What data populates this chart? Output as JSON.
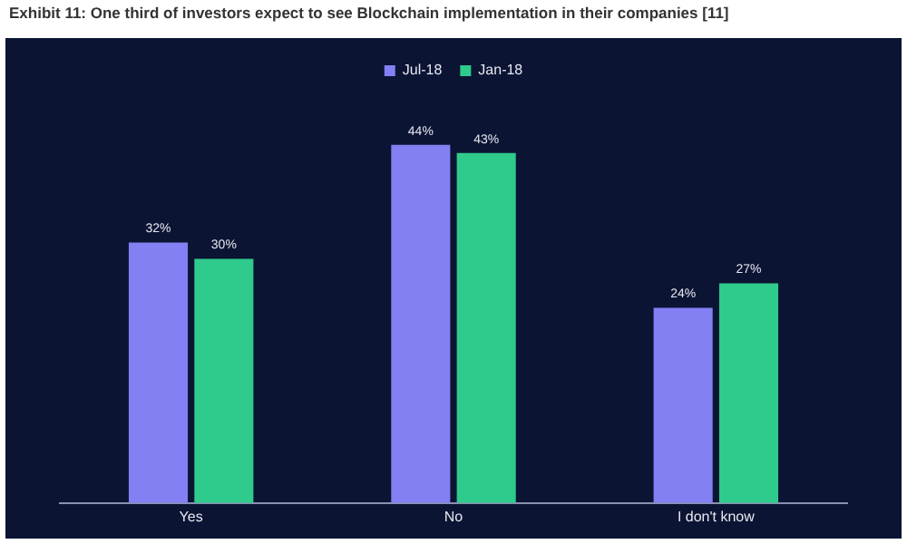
{
  "chart_data": {
    "type": "bar",
    "title": "Exhibit 11: One third of investors expect to see Blockchain implementation in their companies [11]",
    "categories": [
      "Yes",
      "No",
      "I don't know"
    ],
    "series": [
      {
        "name": "Jul-18",
        "color": "#8280f2",
        "values": [
          32,
          44,
          24
        ],
        "value_labels": [
          "32%",
          "44%",
          "24%"
        ]
      },
      {
        "name": "Jan-18",
        "color": "#2fcb8c",
        "values": [
          30,
          43,
          27
        ],
        "value_labels": [
          "30%",
          "43%",
          "27%"
        ]
      }
    ],
    "legend": "top",
    "grid": false
  }
}
